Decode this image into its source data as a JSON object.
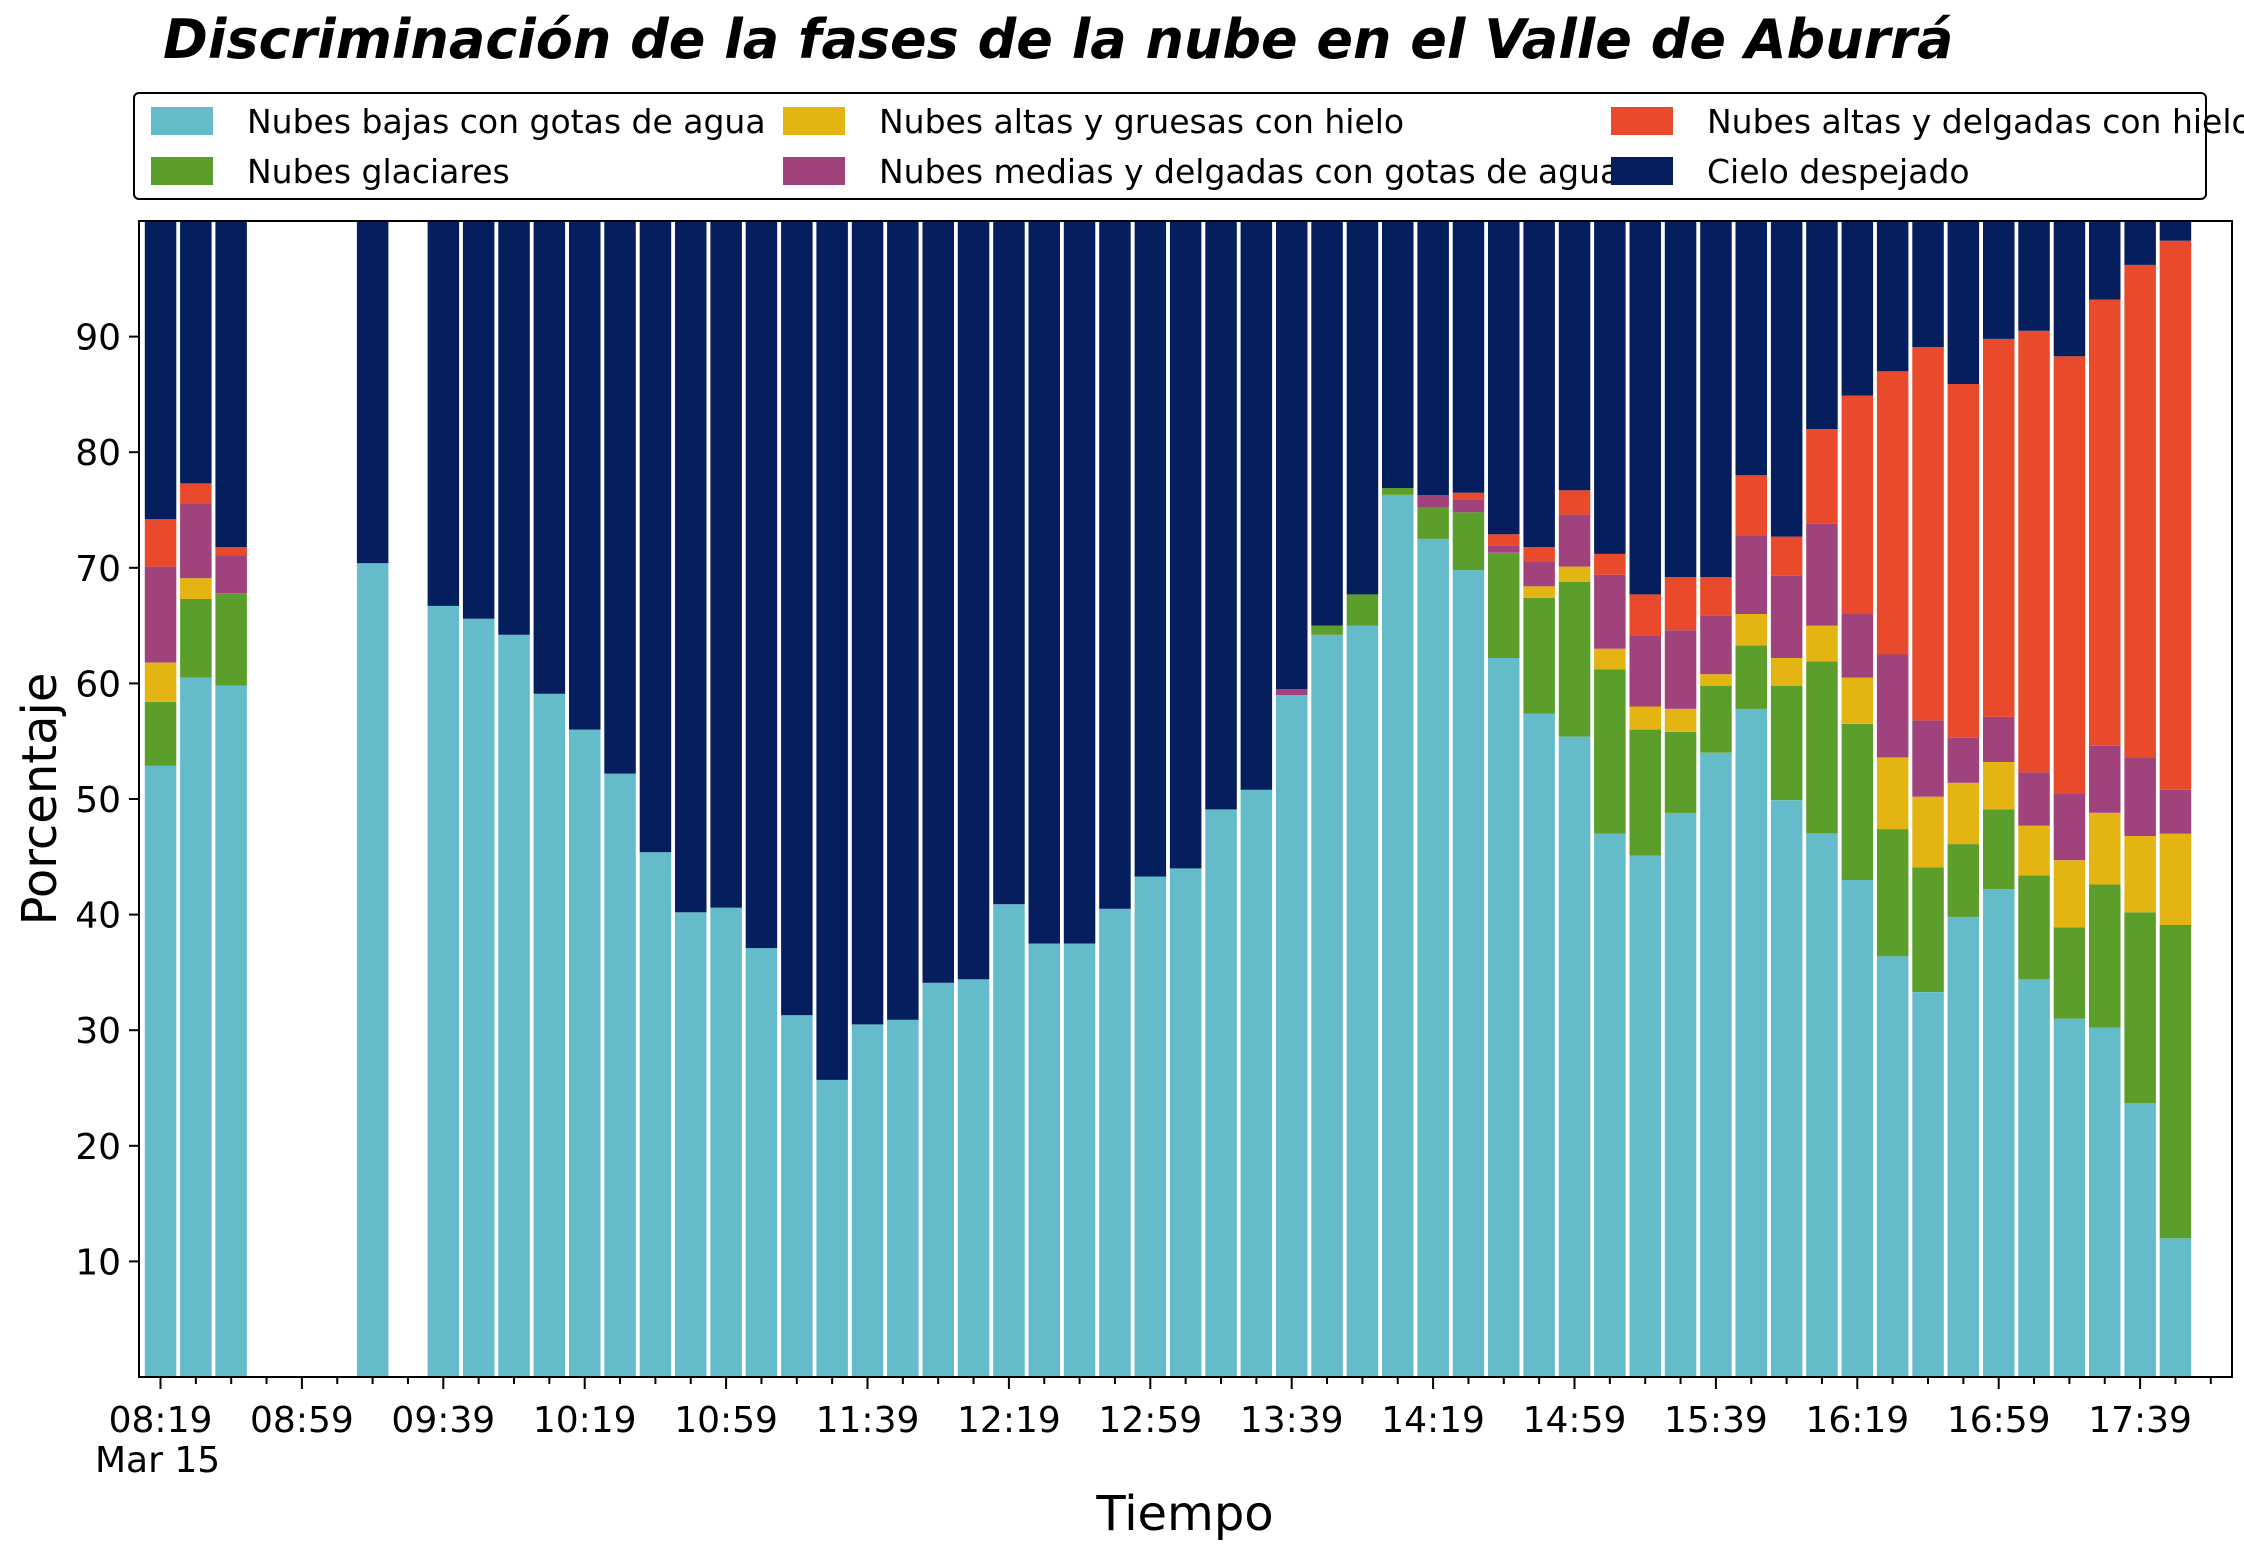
{
  "chart_data": {
    "type": "bar",
    "stacked": true,
    "title": "Discriminación de la fases de la nube en el Valle de Aburrá",
    "xlabel": "Tiempo",
    "ylabel": "Porcentaje",
    "ylim": [
      0,
      100
    ],
    "yticks": [
      10,
      20,
      30,
      40,
      50,
      60,
      70,
      80,
      90
    ],
    "x_tick_labels": [
      "08:19",
      "08:59",
      "09:39",
      "10:19",
      "10:59",
      "11:39",
      "12:19",
      "12:59",
      "13:39",
      "14:19",
      "14:59",
      "15:39",
      "16:19",
      "16:59",
      "17:39"
    ],
    "x_date_label": "Mar 15",
    "x_start": "08:19",
    "x_step_minutes": 10,
    "legend_position": "top",
    "legend_columns": 3,
    "grid": false,
    "categories": [
      "08:19",
      "08:29",
      "08:39",
      "08:49",
      "08:59",
      "09:09",
      "09:19",
      "09:29",
      "09:39",
      "09:49",
      "09:59",
      "10:09",
      "10:19",
      "10:29",
      "10:39",
      "10:49",
      "10:59",
      "11:09",
      "11:19",
      "11:29",
      "11:39",
      "11:49",
      "11:59",
      "12:09",
      "12:19",
      "12:29",
      "12:39",
      "12:49",
      "12:59",
      "13:09",
      "13:19",
      "13:29",
      "13:39",
      "13:49",
      "13:59",
      "14:09",
      "14:19",
      "14:29",
      "14:39",
      "14:49",
      "14:59",
      "15:09",
      "15:19",
      "15:29",
      "15:39",
      "15:49",
      "15:59",
      "16:09",
      "16:19",
      "16:29",
      "16:39",
      "16:49",
      "16:59",
      "17:09",
      "17:19",
      "17:29",
      "17:39",
      "17:49"
    ],
    "series": [
      {
        "name": "Nubes bajas con gotas de agua",
        "color": "#64bbc9",
        "values": [
          52.9,
          60.5,
          59.8,
          null,
          null,
          null,
          70.4,
          null,
          66.7,
          65.6,
          64.2,
          59.1,
          56.0,
          52.2,
          45.4,
          40.2,
          40.6,
          37.1,
          31.3,
          25.7,
          30.5,
          30.9,
          34.1,
          34.4,
          40.9,
          37.5,
          37.5,
          40.5,
          43.3,
          44.0,
          49.1,
          50.8,
          59.0,
          64.2,
          65.0,
          76.3,
          72.5,
          69.8,
          62.2,
          57.4,
          55.4,
          47.0,
          45.1,
          48.8,
          54.0,
          57.8,
          49.9,
          47.0,
          43.0,
          36.4,
          33.3,
          39.8,
          42.2,
          34.4,
          31.0,
          30.2,
          23.7,
          12.0
        ]
      },
      {
        "name": "Nubes glaciares",
        "color": "#5b9e2b",
        "values": [
          5.5,
          6.8,
          8.0,
          null,
          null,
          null,
          0,
          null,
          0,
          0,
          0,
          0,
          0,
          0,
          0,
          0,
          0,
          0,
          0,
          0,
          0,
          0,
          0,
          0,
          0,
          0,
          0,
          0,
          0,
          0,
          0,
          0,
          0,
          0.8,
          2.7,
          0.6,
          2.7,
          5.0,
          9.1,
          10.0,
          13.4,
          14.2,
          10.9,
          7.0,
          5.8,
          5.5,
          9.9,
          14.9,
          13.5,
          11.0,
          10.8,
          6.3,
          6.9,
          9.0,
          7.9,
          12.4,
          16.5,
          27.1
        ]
      },
      {
        "name": "Nubes altas y gruesas con hielo",
        "color": "#e4b412",
        "values": [
          3.4,
          1.8,
          0,
          null,
          null,
          null,
          0,
          null,
          0,
          0,
          0,
          0,
          0,
          0,
          0,
          0,
          0,
          0,
          0,
          0,
          0,
          0,
          0,
          0,
          0,
          0,
          0,
          0,
          0,
          0,
          0,
          0,
          0,
          0,
          0,
          0,
          0,
          0,
          0,
          1.0,
          1.3,
          1.8,
          2.0,
          2.0,
          1.0,
          2.7,
          2.4,
          3.1,
          4.0,
          6.2,
          6.1,
          5.3,
          4.1,
          4.3,
          5.8,
          6.2,
          6.6,
          7.9
        ]
      },
      {
        "name": "Nubes medias y delgadas con gotas de agua",
        "color": "#a0427b",
        "values": [
          8.3,
          6.5,
          3.3,
          null,
          null,
          null,
          0,
          null,
          0,
          0,
          0,
          0,
          0,
          0,
          0,
          0,
          0,
          0,
          0,
          0,
          0,
          0,
          0,
          0,
          0,
          0,
          0,
          0,
          0,
          0,
          0,
          0,
          0.5,
          0,
          0,
          0,
          1.1,
          1.1,
          0.6,
          2.1,
          4.5,
          6.4,
          6.1,
          6.8,
          5.1,
          6.8,
          7.1,
          8.8,
          5.5,
          8.9,
          6.6,
          3.9,
          3.9,
          4.6,
          5.8,
          5.8,
          6.8,
          3.8
        ]
      },
      {
        "name": "Nubes altas y delgadas con hielo",
        "color": "#e94a2b",
        "values": [
          4.1,
          1.7,
          0.7,
          null,
          null,
          null,
          0,
          null,
          0,
          0,
          0,
          0,
          0,
          0,
          0,
          0,
          0,
          0,
          0,
          0,
          0,
          0,
          0,
          0,
          0,
          0,
          0,
          0,
          0,
          0,
          0,
          0,
          0,
          0,
          0,
          0,
          0,
          0.6,
          1.0,
          1.3,
          2.1,
          1.8,
          3.6,
          4.6,
          3.3,
          5.2,
          3.4,
          8.2,
          18.9,
          24.5,
          32.3,
          30.6,
          32.7,
          38.2,
          37.8,
          38.6,
          42.6,
          47.5
        ]
      },
      {
        "name": "Cielo despejado",
        "color": "#051e5e",
        "values": [
          25.8,
          22.7,
          28.2,
          null,
          null,
          null,
          29.6,
          null,
          33.3,
          34.4,
          35.8,
          40.9,
          44.0,
          47.8,
          54.6,
          59.8,
          59.4,
          62.9,
          68.7,
          74.3,
          69.5,
          69.1,
          65.9,
          65.6,
          59.1,
          62.5,
          62.5,
          59.5,
          56.7,
          56.0,
          50.9,
          49.2,
          40.5,
          35.0,
          32.3,
          23.1,
          23.7,
          23.5,
          27.1,
          28.2,
          23.3,
          28.8,
          32.3,
          30.8,
          30.8,
          22.0,
          27.3,
          18.0,
          15.1,
          13.0,
          10.9,
          14.1,
          10.2,
          9.5,
          11.7,
          6.8,
          3.8,
          1.7
        ]
      }
    ]
  }
}
